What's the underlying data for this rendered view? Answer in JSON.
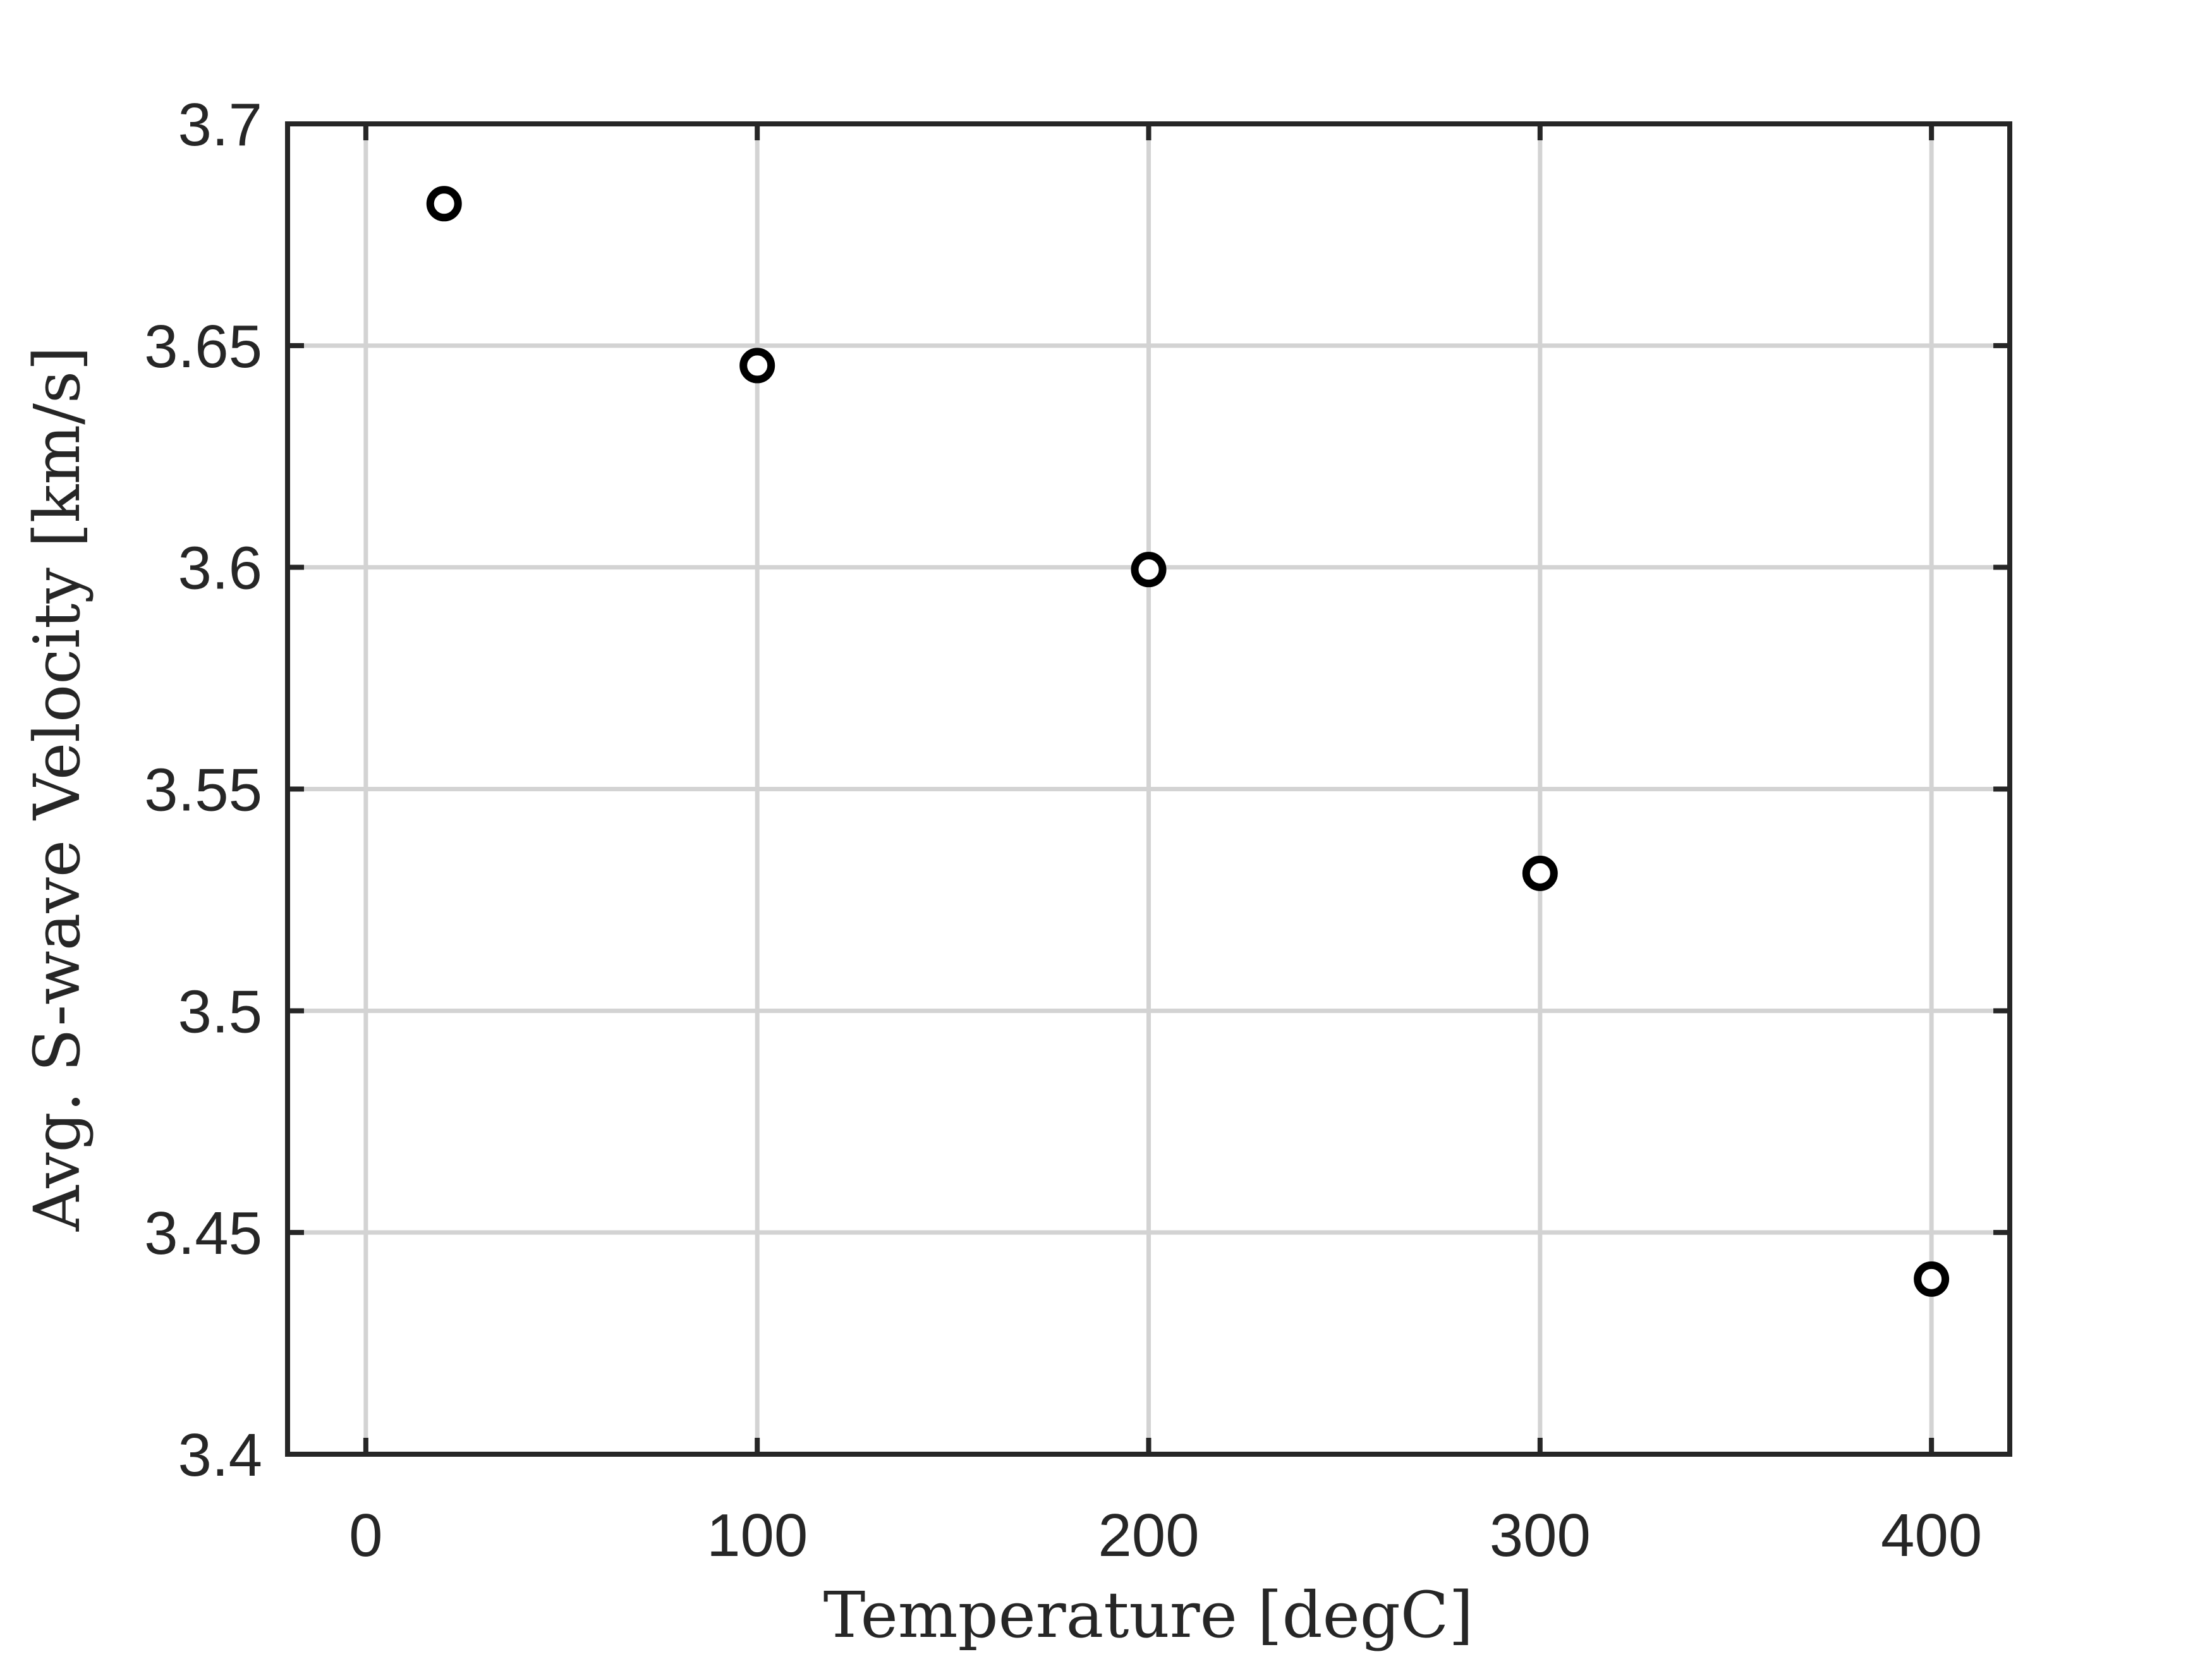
{
  "chart_data": {
    "type": "scatter",
    "title": "",
    "xlabel": "Temperature [degC]",
    "ylabel": "Avg. S-wave Velocity [km/s]",
    "xlim": [
      -20,
      420
    ],
    "ylim": [
      3.4,
      3.7
    ],
    "xticks": [
      0,
      100,
      200,
      300,
      400
    ],
    "xtick_labels": [
      "0",
      "100",
      "200",
      "300",
      "400"
    ],
    "yticks": [
      3.4,
      3.45,
      3.5,
      3.55,
      3.6,
      3.65,
      3.7
    ],
    "ytick_labels": [
      "3.4",
      "3.45",
      "3.5",
      "3.55",
      "3.6",
      "3.65",
      "3.7"
    ],
    "grid": true,
    "legend": "none",
    "marker": "open circle",
    "colors": {
      "marker": "#000000",
      "axes": "#262626",
      "grid": "#d3d3d3"
    },
    "series": [
      {
        "x": [
          20,
          100,
          200,
          300,
          400
        ],
        "y": [
          3.682,
          3.6455,
          3.5995,
          3.531,
          3.4395
        ]
      }
    ]
  }
}
